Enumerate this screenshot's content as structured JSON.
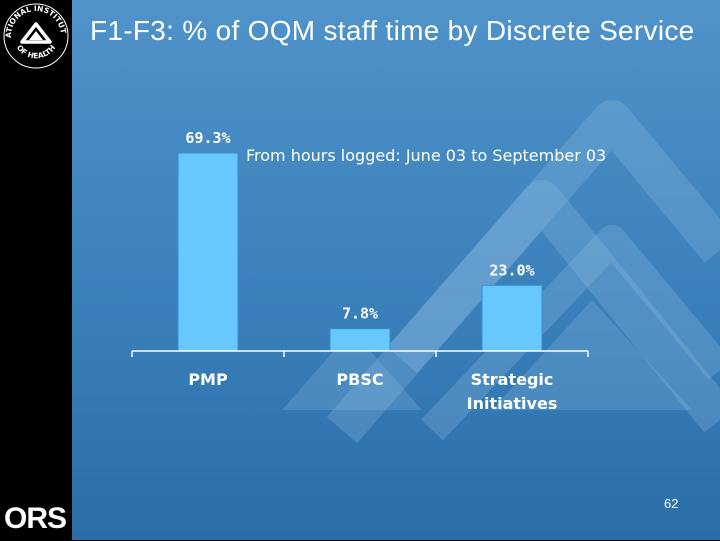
{
  "slide": {
    "title": "F1-F3: % of OQM staff time by Discrete Service",
    "page_number": "62",
    "logo_text": "ORS",
    "seal_text": "NATIONAL INSTITUTES OF HEALTH"
  },
  "colors": {
    "bar": "#66c8ff",
    "background_top": "#4f93c9",
    "background_bottom": "#2a6ea8",
    "text": "#ffffff"
  },
  "chart_data": {
    "type": "bar",
    "title": "",
    "subtitle": "From hours logged: June 03 to September 03",
    "categories": [
      "PMP",
      "PBSC",
      "Strategic Initiatives"
    ],
    "category_lines": [
      [
        "PMP"
      ],
      [
        "PBSC"
      ],
      [
        "Strategic",
        "Initiatives"
      ]
    ],
    "values": [
      69.3,
      7.8,
      23.0
    ],
    "value_labels": [
      "69.3%",
      "7.8%",
      "23.0%"
    ],
    "unit": "%",
    "ylim": [
      0,
      70
    ],
    "xlabel": "",
    "ylabel": "",
    "grid": false,
    "legend": "none"
  }
}
